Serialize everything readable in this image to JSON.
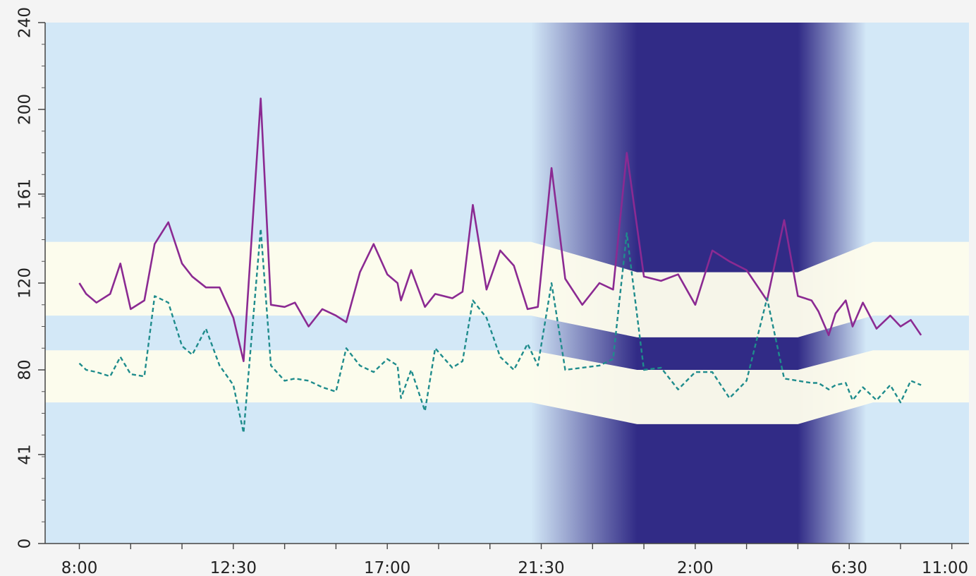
{
  "chart_data": {
    "type": "line",
    "title": "",
    "xlabel": "",
    "ylabel": "",
    "x_ticks": [
      "8:00",
      "12:30",
      "17:00",
      "21:30",
      "2:00",
      "6:30",
      "11:00"
    ],
    "y_ticks": [
      "0",
      "41",
      "80",
      "120",
      "161",
      "200",
      "240"
    ],
    "y_tick_values": [
      0,
      41,
      80,
      120,
      161,
      200,
      240
    ],
    "xlim_hours": [
      8,
      35
    ],
    "ylim": [
      0,
      240
    ],
    "grid": false,
    "legend": "none",
    "colors": {
      "background": "#d3e8f7",
      "night": "#312b86",
      "target_band": "#fdfcec",
      "systolic": "#8b2a92",
      "diastolic": "#1f8c8c"
    },
    "night_period_hours": {
      "fade_in_start": 22.2,
      "full_start": 25.3,
      "full_end": 30.0,
      "fade_out_end": 32.0
    },
    "target_bands": {
      "upper": [
        {
          "x": 8,
          "low": 105,
          "high": 139
        },
        {
          "x": 22.2,
          "low": 105,
          "high": 139
        },
        {
          "x": 25.3,
          "low": 95,
          "high": 125
        },
        {
          "x": 30.0,
          "low": 95,
          "high": 125
        },
        {
          "x": 32.2,
          "low": 105,
          "high": 139
        },
        {
          "x": 35,
          "low": 105,
          "high": 139
        }
      ],
      "lower": [
        {
          "x": 8,
          "low": 65,
          "high": 89
        },
        {
          "x": 22.2,
          "low": 65,
          "high": 89
        },
        {
          "x": 25.3,
          "low": 55,
          "high": 80
        },
        {
          "x": 30.0,
          "low": 55,
          "high": 80
        },
        {
          "x": 32.2,
          "low": 65,
          "high": 89
        },
        {
          "x": 35,
          "low": 65,
          "high": 89
        }
      ]
    },
    "series": [
      {
        "style": "solid",
        "x": [
          9.0,
          9.2,
          9.5,
          9.9,
          10.2,
          10.5,
          10.9,
          11.2,
          11.6,
          12.0,
          12.3,
          12.7,
          13.1,
          13.5,
          13.8,
          14.3,
          14.6,
          15.0,
          15.3,
          15.7,
          16.1,
          16.5,
          16.8,
          17.2,
          17.6,
          18.0,
          18.3,
          18.4,
          18.7,
          19.1,
          19.4,
          19.9,
          20.2,
          20.5,
          20.9,
          21.3,
          21.7,
          22.1,
          22.4,
          22.8,
          23.2,
          23.7,
          24.2,
          24.6,
          25.0,
          25.5,
          26.0,
          26.5,
          27.0,
          27.5,
          28.0,
          28.5,
          29.1,
          29.6,
          30.0,
          30.4,
          30.6,
          30.9,
          31.1,
          31.4,
          31.6,
          31.9,
          32.3,
          32.7,
          33.0,
          33.3,
          33.6
        ],
        "y": [
          120,
          115,
          111,
          115,
          129,
          108,
          112,
          138,
          148,
          129,
          123,
          118,
          118,
          104,
          84,
          205,
          110,
          109,
          111,
          100,
          108,
          105,
          102,
          125,
          138,
          124,
          120,
          112,
          126,
          109,
          115,
          113,
          116,
          156,
          117,
          135,
          128,
          108,
          109,
          173,
          122,
          110,
          120,
          117,
          180,
          123,
          121,
          124,
          110,
          135,
          130,
          126,
          112,
          149,
          114,
          112,
          107,
          96,
          106,
          112,
          100,
          111,
          99,
          105,
          100,
          103,
          96
        ]
      },
      {
        "style": "dashed",
        "x": [
          9.0,
          9.2,
          9.5,
          9.9,
          10.2,
          10.5,
          10.9,
          11.2,
          11.6,
          12.0,
          12.3,
          12.7,
          13.1,
          13.5,
          13.8,
          14.3,
          14.6,
          15.0,
          15.3,
          15.7,
          16.1,
          16.5,
          16.8,
          17.2,
          17.6,
          18.0,
          18.3,
          18.4,
          18.7,
          19.1,
          19.4,
          19.9,
          20.2,
          20.5,
          20.9,
          21.3,
          21.7,
          22.1,
          22.4,
          22.8,
          23.2,
          23.7,
          24.2,
          24.6,
          25.0,
          25.5,
          26.0,
          26.5,
          27.0,
          27.5,
          28.0,
          28.5,
          29.1,
          29.6,
          30.0,
          30.4,
          30.6,
          30.9,
          31.1,
          31.4,
          31.6,
          31.9,
          32.3,
          32.7,
          33.0,
          33.3,
          33.6
        ],
        "y": [
          83,
          80,
          79,
          77,
          86,
          78,
          77,
          114,
          111,
          91,
          87,
          99,
          82,
          73,
          51,
          145,
          82,
          75,
          76,
          75,
          72,
          70,
          90,
          82,
          79,
          85,
          82,
          67,
          80,
          61,
          90,
          81,
          84,
          112,
          104,
          86,
          80,
          92,
          82,
          120,
          80,
          81,
          82,
          85,
          143,
          80,
          81,
          71,
          79,
          79,
          67,
          75,
          113,
          76,
          75,
          74,
          74,
          71,
          73,
          74,
          66,
          72,
          66,
          73,
          65,
          75,
          73
        ]
      }
    ]
  }
}
